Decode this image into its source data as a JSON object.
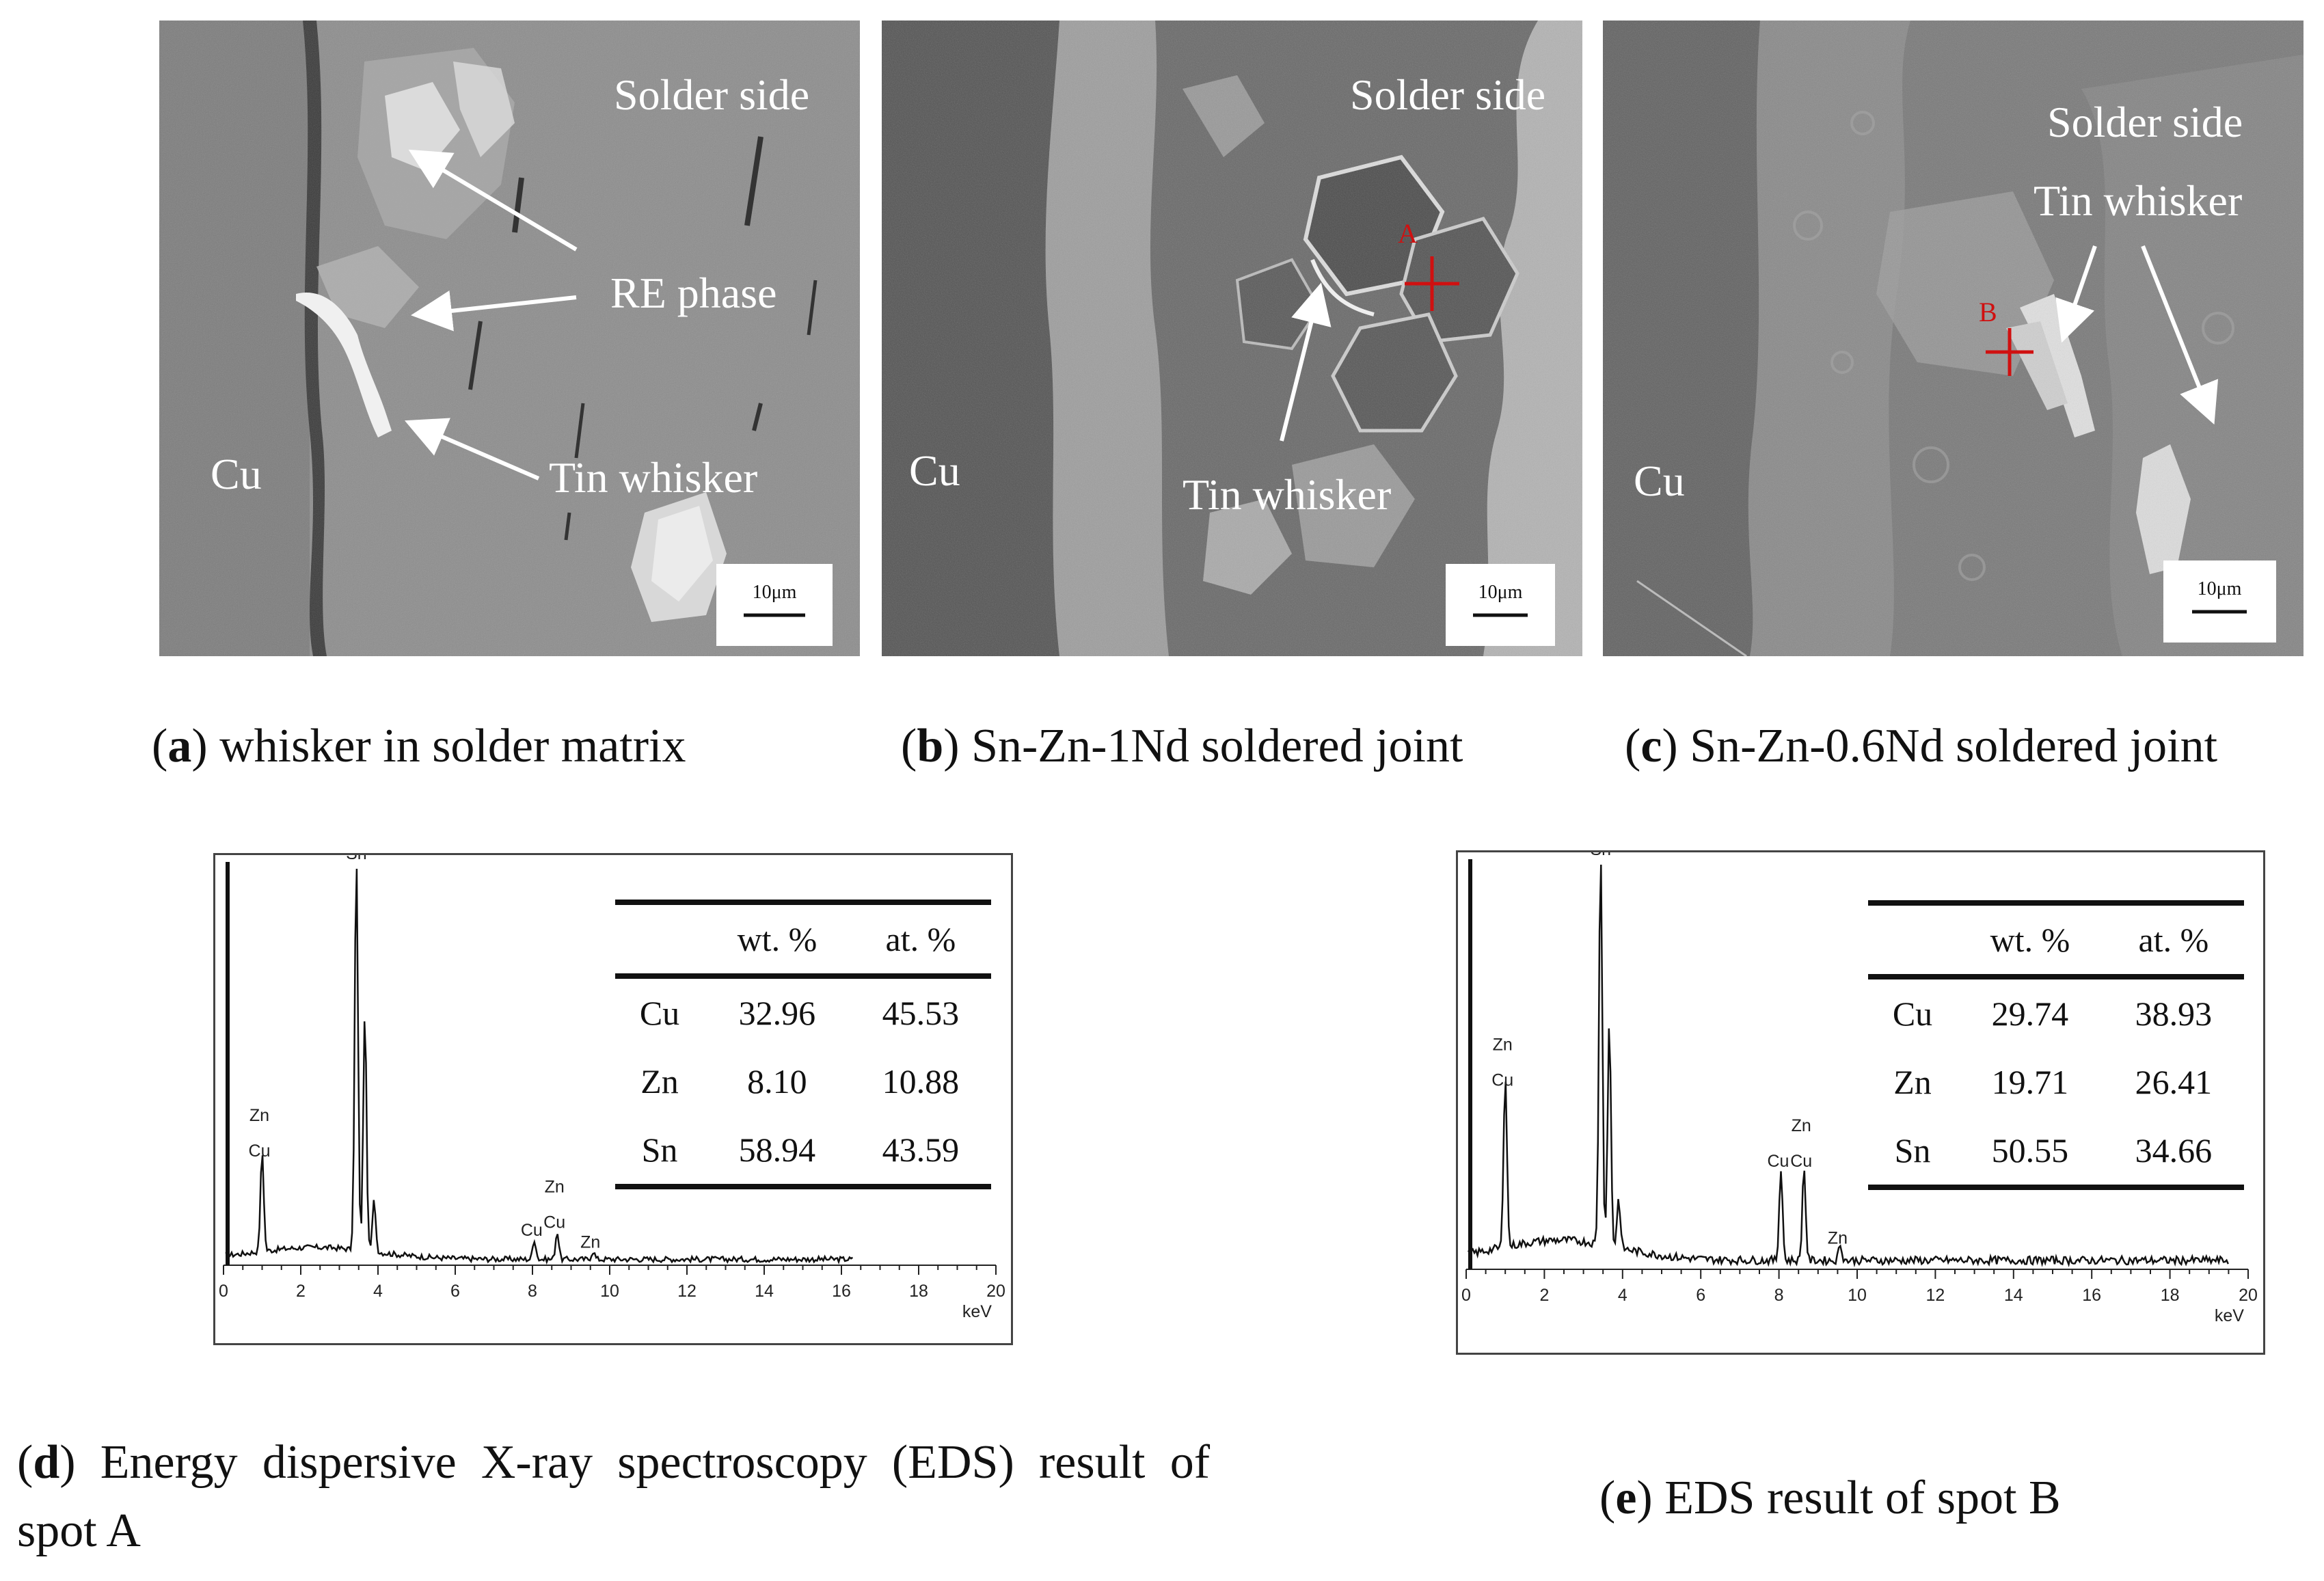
{
  "panels": {
    "a": {
      "labels": {
        "solder": "Solder side",
        "cu": "Cu",
        "re": "RE phase",
        "whisker": "Tin whisker"
      },
      "scale_bar": "10μm",
      "caption": {
        "letter": "a",
        "text": "whisker in solder matrix"
      }
    },
    "b": {
      "labels": {
        "solder": "Solder side",
        "cu": "Cu",
        "whisker": "Tin whisker",
        "spot": "A"
      },
      "scale_bar": "10μm",
      "caption": {
        "letter": "b",
        "text": "Sn-Zn-1Nd soldered joint"
      }
    },
    "c": {
      "labels": {
        "solder": "Solder side",
        "cu": "Cu",
        "whisker": "Tin whisker",
        "spot": "B"
      },
      "scale_bar": "10μm",
      "caption": {
        "letter": "c",
        "text": "Sn-Zn-0.6Nd soldered joint"
      }
    },
    "d": {
      "caption": {
        "letter": "d",
        "text": "Energy dispersive X-ray spectroscopy (EDS) result of spot A"
      },
      "table": {
        "headers": [
          "",
          "wt. %",
          "at. %"
        ],
        "rows": [
          {
            "el": "Cu",
            "wt": "32.96",
            "at": "45.53"
          },
          {
            "el": "Zn",
            "wt": "8.10",
            "at": "10.88"
          },
          {
            "el": "Sn",
            "wt": "58.94",
            "at": "43.59"
          }
        ]
      }
    },
    "e": {
      "caption": {
        "letter": "e",
        "text": "EDS result of spot B"
      },
      "table": {
        "headers": [
          "",
          "wt. %",
          "at. %"
        ],
        "rows": [
          {
            "el": "Cu",
            "wt": "29.74",
            "at": "38.93"
          },
          {
            "el": "Zn",
            "wt": "19.71",
            "at": "26.41"
          },
          {
            "el": "Sn",
            "wt": "50.55",
            "at": "34.66"
          }
        ]
      }
    }
  },
  "chart_data": [
    {
      "type": "line",
      "xunit": "keV",
      "xlim": [
        0,
        20
      ],
      "xticks": [
        0,
        2,
        4,
        6,
        8,
        10,
        12,
        14,
        16,
        18,
        20
      ],
      "peaks": [
        {
          "x": 1.0,
          "rel": 0.25,
          "labels": [
            "Zn",
            "Cu"
          ]
        },
        {
          "x": 3.44,
          "rel": 1.0,
          "labels": [
            "Sn"
          ]
        },
        {
          "x": 3.66,
          "rel": 0.6,
          "labels": []
        },
        {
          "x": 3.9,
          "rel": 0.13,
          "labels": []
        },
        {
          "x": 8.05,
          "rel": 0.05,
          "labels": [
            "Cu"
          ]
        },
        {
          "x": 8.64,
          "rel": 0.07,
          "labels": [
            "Zn",
            "Cu"
          ]
        },
        {
          "x": 9.57,
          "rel": 0.02,
          "labels": [
            "Zn"
          ]
        }
      ]
    },
    {
      "type": "line",
      "xunit": "keV",
      "xlim": [
        0,
        20
      ],
      "xticks": [
        0,
        2,
        4,
        6,
        8,
        10,
        12,
        14,
        16,
        18,
        20
      ],
      "peaks": [
        {
          "x": 1.0,
          "rel": 0.43,
          "labels": [
            "Zn",
            "Cu"
          ]
        },
        {
          "x": 3.44,
          "rel": 1.0,
          "labels": [
            "Sn"
          ]
        },
        {
          "x": 3.66,
          "rel": 0.55,
          "labels": []
        },
        {
          "x": 3.9,
          "rel": 0.12,
          "labels": []
        },
        {
          "x": 8.05,
          "rel": 0.23,
          "labels": [
            "Cu"
          ]
        },
        {
          "x": 8.64,
          "rel": 0.23,
          "labels": [
            "Zn",
            "Cu"
          ]
        },
        {
          "x": 9.57,
          "rel": 0.04,
          "labels": [
            "Zn"
          ]
        }
      ]
    }
  ]
}
